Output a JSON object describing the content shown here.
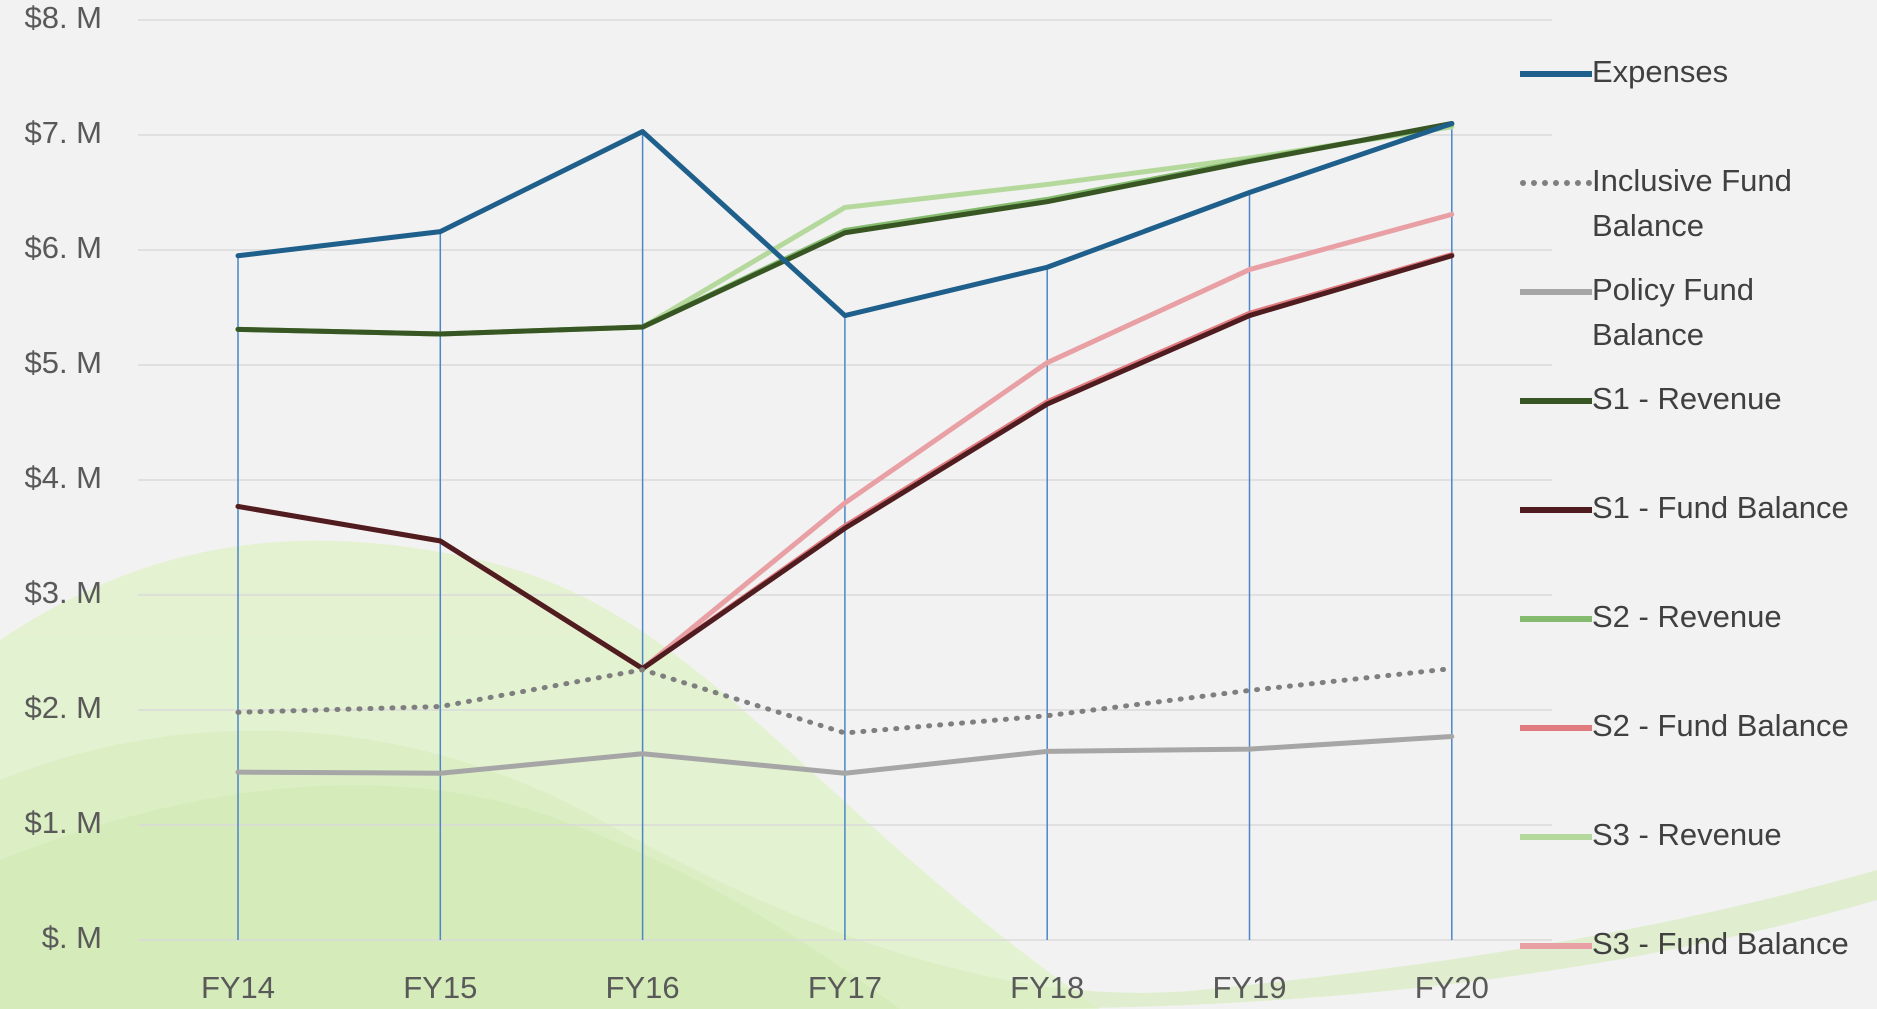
{
  "chart_data": {
    "type": "line",
    "categories": [
      "FY14",
      "FY15",
      "FY16",
      "FY17",
      "FY18",
      "FY19",
      "FY20"
    ],
    "ylim": [
      0,
      8
    ],
    "yticks": [
      {
        "value": 0,
        "label": "$. M"
      },
      {
        "value": 1,
        "label": "$1. M"
      },
      {
        "value": 2,
        "label": "$2. M"
      },
      {
        "value": 3,
        "label": "$3. M"
      },
      {
        "value": 4,
        "label": "$4. M"
      },
      {
        "value": 5,
        "label": "$5. M"
      },
      {
        "value": 6,
        "label": "$6. M"
      },
      {
        "value": 7,
        "label": "$7. M"
      },
      {
        "value": 8,
        "label": "$8. M"
      }
    ],
    "grid": true,
    "legend": "right",
    "series": [
      {
        "name": "Expenses",
        "color": "#1f5f8b",
        "values": [
          5.95,
          6.16,
          7.03,
          5.43,
          5.85,
          6.5,
          7.1
        ]
      },
      {
        "name": "Inclusive Fund Balance",
        "color": "#7f7f7f",
        "dashed": true,
        "values": [
          1.98,
          2.03,
          2.35,
          1.8,
          1.95,
          2.17,
          2.36
        ]
      },
      {
        "name": "Policy Fund Balance",
        "color": "#a6a6a6",
        "values": [
          1.46,
          1.45,
          1.62,
          1.45,
          1.64,
          1.66,
          1.77
        ]
      },
      {
        "name": "S1 - Revenue",
        "color": "#375623",
        "values": [
          5.31,
          5.27,
          5.33,
          6.15,
          6.42,
          6.77,
          7.1
        ]
      },
      {
        "name": "S1 - Fund Balance",
        "color": "#4f1c1f",
        "values": [
          3.77,
          3.47,
          2.36,
          3.58,
          4.66,
          5.43,
          5.95
        ]
      },
      {
        "name": "S2 - Revenue",
        "color": "#85bb6f",
        "values": [
          5.31,
          5.27,
          5.33,
          6.17,
          6.44,
          6.78,
          7.09
        ]
      },
      {
        "name": "S2 - Fund Balance",
        "color": "#e07b7f",
        "values": [
          3.77,
          3.47,
          2.36,
          3.6,
          4.68,
          5.45,
          5.96
        ]
      },
      {
        "name": "S3 - Revenue",
        "color": "#b5d99c",
        "values": [
          5.31,
          5.27,
          5.33,
          6.37,
          6.57,
          6.8,
          7.07
        ]
      },
      {
        "name": "S3 - Fund Balance",
        "color": "#e8a0a4",
        "values": [
          3.77,
          3.47,
          2.36,
          3.8,
          5.02,
          5.83,
          6.31
        ]
      }
    ]
  }
}
